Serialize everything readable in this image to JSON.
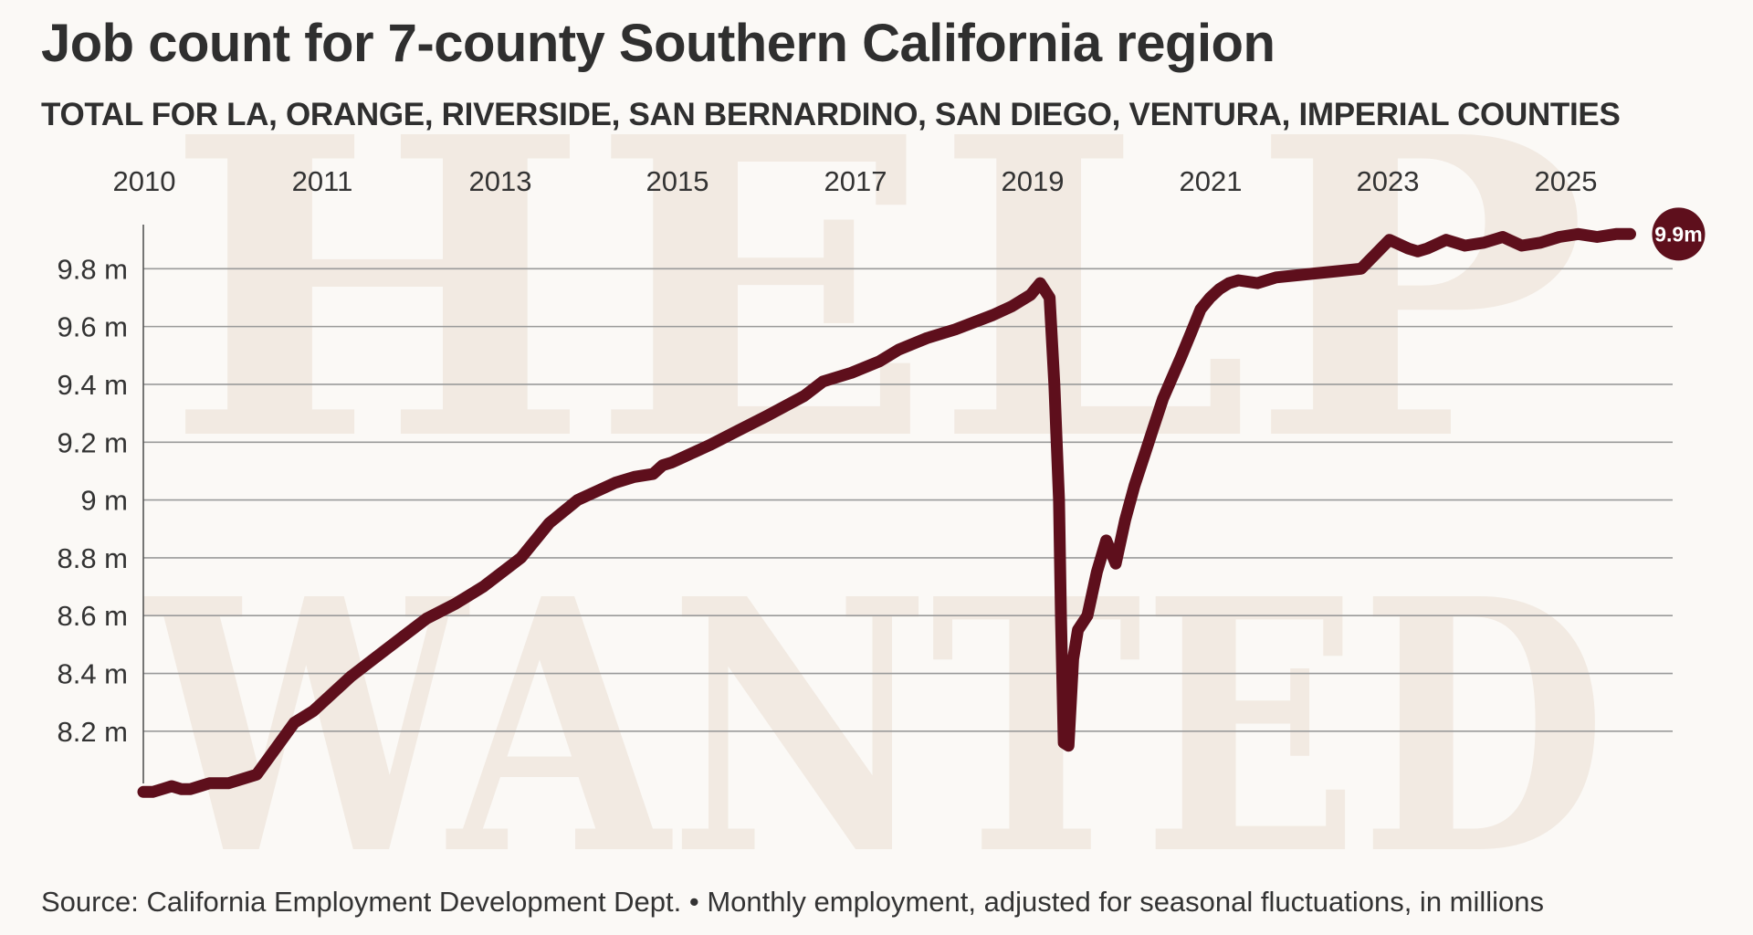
{
  "header": {
    "title": "Job count for 7-county Southern California region",
    "subtitle": "TOTAL FOR LA, ORANGE, RIVERSIDE, SAN BERNARDINO, SAN DIEGO, VENTURA, IMPERIAL COUNTIES"
  },
  "footer": {
    "source": "Source: California Employment Development Dept. • Monthly employment, adjusted for seasonal fluctuations, in millions"
  },
  "watermark": {
    "line1": "HELP",
    "line2": "WANTED"
  },
  "colors": {
    "line": "#5e0f1c",
    "grid": "#9a9a9a",
    "background": "#fbf9f6",
    "watermark": "#efe6dc"
  },
  "chart_data": {
    "type": "line",
    "title": "Job count for 7-county Southern California region",
    "subtitle": "TOTAL FOR LA, ORANGE, RIVERSIDE, SAN BERNARDINO, SAN DIEGO, VENTURA, IMPERIAL COUNTIES",
    "xlabel": "",
    "ylabel": "",
    "x_tick_labels": [
      "2010",
      "2011",
      "2013",
      "2015",
      "2017",
      "2019",
      "2021",
      "2023",
      "2025"
    ],
    "y_tick_labels": [
      "8.2 m",
      "8.4 m",
      "8.6 m",
      "8.8 m",
      "9 m",
      "9.2 m",
      "9.4 m",
      "9.6 m",
      "9.8 m"
    ],
    "y_ticks": [
      8.2,
      8.4,
      8.6,
      8.8,
      9.0,
      9.2,
      9.4,
      9.6,
      9.8
    ],
    "ylim": [
      7.95,
      10.0
    ],
    "grid": true,
    "end_label": "9.9m",
    "series": [
      {
        "x": [
          2010.0,
          2010.1,
          2010.2,
          2010.3,
          2010.4,
          2010.5,
          2010.6,
          2010.7,
          2010.8,
          2010.9,
          2011.0,
          2011.2,
          2011.4,
          2011.6,
          2011.8,
          2012.0,
          2012.2,
          2012.4,
          2012.6,
          2012.8,
          2013.0,
          2013.3,
          2013.6,
          2014.0,
          2014.3,
          2014.6,
          2015.0,
          2015.2,
          2015.4,
          2015.5,
          2015.6,
          2015.8,
          2016.0,
          2016.3,
          2016.6,
          2017.0,
          2017.2,
          2017.5,
          2017.8,
          2018.0,
          2018.3,
          2018.6,
          2019.0,
          2019.2,
          2019.4,
          2019.5,
          2019.6,
          2019.65,
          2019.7,
          2019.72,
          2019.75,
          2019.8,
          2019.85,
          2019.9,
          2020.0,
          2020.1,
          2020.2,
          2020.3,
          2020.4,
          2020.5,
          2020.6,
          2020.7,
          2020.8,
          2021.0,
          2021.1,
          2021.2,
          2021.3,
          2021.4,
          2021.5,
          2021.6,
          2021.8,
          2022.0,
          2022.3,
          2022.6,
          2022.9,
          2023.2,
          2023.4,
          2023.5,
          2023.6,
          2023.8,
          2024.0,
          2024.2,
          2024.4,
          2024.6,
          2024.8,
          2025.0,
          2025.2,
          2025.4,
          2025.6,
          2025.75
        ],
        "values": [
          7.99,
          7.99,
          8.0,
          8.01,
          8.0,
          8.0,
          8.01,
          8.02,
          8.02,
          8.02,
          8.03,
          8.05,
          8.14,
          8.23,
          8.27,
          8.33,
          8.39,
          8.44,
          8.49,
          8.54,
          8.59,
          8.64,
          8.7,
          8.8,
          8.92,
          9.0,
          9.06,
          9.08,
          9.09,
          9.12,
          9.13,
          9.16,
          9.19,
          9.24,
          9.29,
          9.36,
          9.41,
          9.44,
          9.48,
          9.52,
          9.56,
          9.59,
          9.64,
          9.67,
          9.71,
          9.75,
          9.7,
          9.4,
          9.0,
          8.6,
          8.16,
          8.15,
          8.45,
          8.55,
          8.6,
          8.75,
          8.86,
          8.78,
          8.93,
          9.05,
          9.15,
          9.25,
          9.35,
          9.5,
          9.58,
          9.66,
          9.7,
          9.73,
          9.75,
          9.76,
          9.75,
          9.77,
          9.78,
          9.79,
          9.8,
          9.9,
          9.87,
          9.86,
          9.87,
          9.9,
          9.88,
          9.89,
          9.91,
          9.88,
          9.89,
          9.91,
          9.92,
          9.91,
          9.92,
          9.92
        ]
      }
    ]
  }
}
